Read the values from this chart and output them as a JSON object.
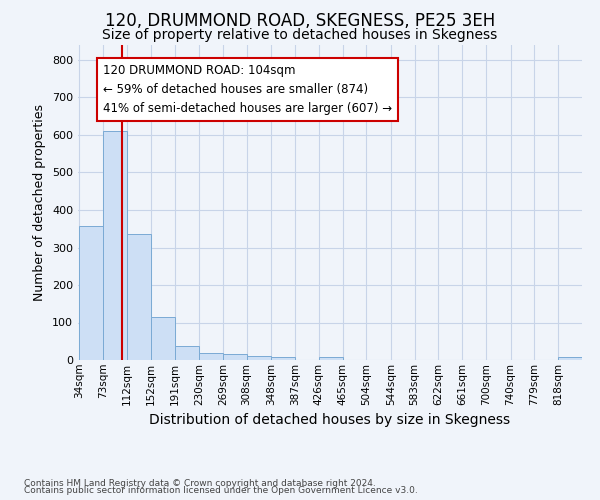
{
  "title": "120, DRUMMOND ROAD, SKEGNESS, PE25 3EH",
  "subtitle": "Size of property relative to detached houses in Skegness",
  "xlabel": "Distribution of detached houses by size in Skegness",
  "ylabel": "Number of detached properties",
  "footer_line1": "Contains HM Land Registry data © Crown copyright and database right 2024.",
  "footer_line2": "Contains public sector information licensed under the Open Government Licence v3.0.",
  "bar_edges": [
    34,
    73,
    112,
    152,
    191,
    230,
    269,
    308,
    348,
    387,
    426,
    465,
    504,
    544,
    583,
    622,
    661,
    700,
    740,
    779,
    818,
    857
  ],
  "bar_heights": [
    358,
    611,
    336,
    114,
    38,
    20,
    15,
    10,
    8,
    0,
    8,
    0,
    0,
    0,
    0,
    0,
    0,
    0,
    0,
    0,
    8,
    0
  ],
  "bar_color": "#cddff5",
  "bar_edge_color": "#7aaad4",
  "bar_linewidth": 0.7,
  "red_line_x": 104,
  "red_line_color": "#cc0000",
  "annotation_text": "120 DRUMMOND ROAD: 104sqm\n← 59% of detached houses are smaller (874)\n41% of semi-detached houses are larger (607) →",
  "annotation_box_color": "white",
  "annotation_box_edge_color": "#cc0000",
  "ylim": [
    0,
    840
  ],
  "yticks": [
    0,
    100,
    200,
    300,
    400,
    500,
    600,
    700,
    800
  ],
  "tick_labels": [
    "34sqm",
    "73sqm",
    "112sqm",
    "152sqm",
    "191sqm",
    "230sqm",
    "269sqm",
    "308sqm",
    "348sqm",
    "387sqm",
    "426sqm",
    "465sqm",
    "504sqm",
    "544sqm",
    "583sqm",
    "622sqm",
    "661sqm",
    "700sqm",
    "740sqm",
    "779sqm",
    "818sqm"
  ],
  "fig_background_color": "#f0f4fa",
  "plot_background_color": "#f0f4fa",
  "grid_color": "#c8d4e8",
  "title_fontsize": 12,
  "subtitle_fontsize": 10,
  "ylabel_fontsize": 9,
  "xlabel_fontsize": 10,
  "annotation_fontsize": 8.5,
  "tick_fontsize": 7.5,
  "ytick_fontsize": 8
}
